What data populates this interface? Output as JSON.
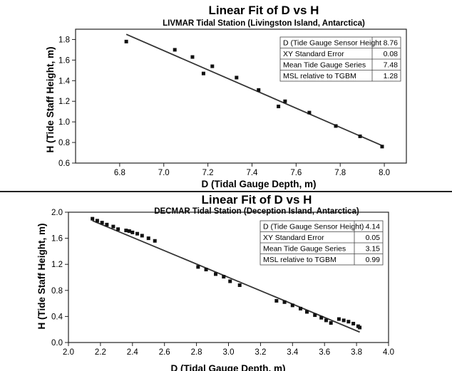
{
  "chart_data": [
    {
      "type": "scatter",
      "title": "Linear Fit of D vs H",
      "subtitle": "LIVMAR Tidal Station (Livingston Island, Antarctica)",
      "xlabel": "D (Tidal Gauge Depth, m)",
      "ylabel": "H (Tide Staff Height, m)",
      "xlim": [
        6.6,
        8.1
      ],
      "ylim": [
        0.6,
        1.9
      ],
      "xticks": [
        "6.8",
        "7.0",
        "7.2",
        "7.4",
        "7.6",
        "7.8",
        "8.0"
      ],
      "yticks": [
        "0.6",
        "0.8",
        "1.0",
        "1.2",
        "1.4",
        "1.6",
        "1.8"
      ],
      "points": [
        [
          6.83,
          1.78
        ],
        [
          7.05,
          1.7
        ],
        [
          7.13,
          1.63
        ],
        [
          7.18,
          1.47
        ],
        [
          7.22,
          1.54
        ],
        [
          7.33,
          1.43
        ],
        [
          7.43,
          1.31
        ],
        [
          7.52,
          1.15
        ],
        [
          7.55,
          1.2
        ],
        [
          7.66,
          1.09
        ],
        [
          7.78,
          0.96
        ],
        [
          7.89,
          0.86
        ],
        [
          7.99,
          0.76
        ]
      ],
      "fit_line": [
        [
          6.83,
          1.85
        ],
        [
          7.99,
          0.77
        ]
      ],
      "stats": [
        {
          "label": "D (Tide Gauge Sensor Height",
          "value": "8.76"
        },
        {
          "label": "XY Standard Error",
          "value": "0.08"
        },
        {
          "label": "Mean Tide Gauge Series",
          "value": "7.48"
        },
        {
          "label": "MSL relative to TGBM",
          "value": "1.28"
        }
      ],
      "grid": false,
      "stats_placement": "top-right"
    },
    {
      "type": "scatter",
      "title": "Linear Fit of D vs H",
      "subtitle": "DECMAR Tidal Station (Deception Island, Antarctica)",
      "xlabel": "D (Tidal Gauge Depth, m)",
      "ylabel": "H (Tide Staff Height, m)",
      "xlim": [
        2.0,
        4.0
      ],
      "ylim": [
        0.0,
        2.0
      ],
      "xticks": [
        "2.0",
        "2.2",
        "2.4",
        "2.6",
        "2.8",
        "3.0",
        "3.2",
        "3.4",
        "3.6",
        "3.8",
        "4.0"
      ],
      "yticks": [
        "0.0",
        "0.4",
        "0.8",
        "1.2",
        "1.6",
        "2.0"
      ],
      "points": [
        [
          2.15,
          1.9
        ],
        [
          2.18,
          1.87
        ],
        [
          2.21,
          1.84
        ],
        [
          2.24,
          1.81
        ],
        [
          2.28,
          1.78
        ],
        [
          2.31,
          1.74
        ],
        [
          2.36,
          1.72
        ],
        [
          2.38,
          1.71
        ],
        [
          2.4,
          1.69
        ],
        [
          2.43,
          1.67
        ],
        [
          2.46,
          1.64
        ],
        [
          2.5,
          1.6
        ],
        [
          2.54,
          1.56
        ],
        [
          2.81,
          1.16
        ],
        [
          2.86,
          1.12
        ],
        [
          2.92,
          1.05
        ],
        [
          2.97,
          1.01
        ],
        [
          3.01,
          0.94
        ],
        [
          3.07,
          0.88
        ],
        [
          3.3,
          0.64
        ],
        [
          3.35,
          0.62
        ],
        [
          3.4,
          0.57
        ],
        [
          3.45,
          0.52
        ],
        [
          3.49,
          0.47
        ],
        [
          3.54,
          0.42
        ],
        [
          3.58,
          0.38
        ],
        [
          3.61,
          0.34
        ],
        [
          3.64,
          0.3
        ],
        [
          3.69,
          0.36
        ],
        [
          3.72,
          0.34
        ],
        [
          3.75,
          0.32
        ],
        [
          3.78,
          0.29
        ],
        [
          3.81,
          0.25
        ],
        [
          3.82,
          0.23
        ]
      ],
      "fit_line": [
        [
          2.15,
          1.87
        ],
        [
          3.82,
          0.16
        ]
      ],
      "stats": [
        {
          "label": "D (Tide Gauge Sensor Height)",
          "value": "4.14"
        },
        {
          "label": "XY Standard Error",
          "value": "0.05"
        },
        {
          "label": "Mean Tide Gauge Series",
          "value": "3.15"
        },
        {
          "label": "MSL relative to TGBM",
          "value": "0.99"
        }
      ],
      "grid": false,
      "stats_placement": "top-right"
    }
  ]
}
